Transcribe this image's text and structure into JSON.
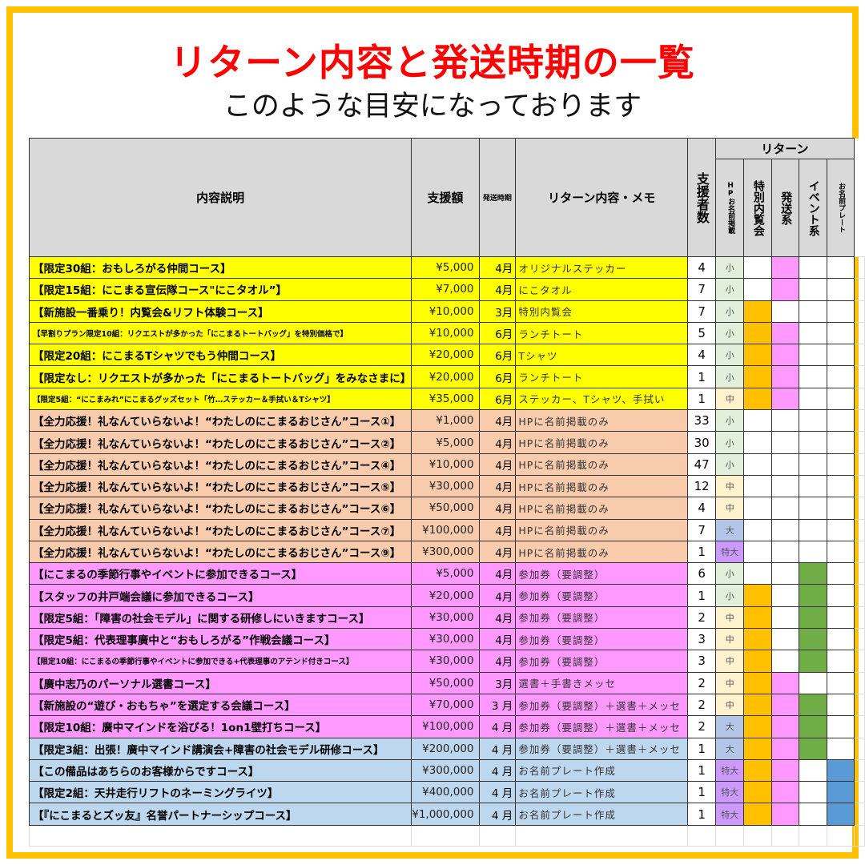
{
  "title": "リターン内容と発送時期の一覧",
  "subtitle": "このような目安になっております",
  "headers": {
    "desc": "内容説明",
    "amount": "支援額",
    "month": "発送時期",
    "memo": "リターン内容・メモ",
    "count": "支援者数",
    "returns": "リターン",
    "hp": "HPお名前掲載",
    "special": "特別内覧会",
    "ship": "発送系",
    "event": "イベント系",
    "plate": "お名前プレート"
  },
  "colors": {
    "yellow": "#ffff00",
    "peach": "#f8cbad",
    "pink": "#ff99ff",
    "blue": "#bdd7ee",
    "special": "#ffc000",
    "ship": "#ff99ff",
    "event": "#70ad47",
    "plate": "#5b9bd5",
    "小": "#e2efda",
    "中": "#fff2cc",
    "大": "#b4c6e7",
    "特大": "#cc99ff",
    "border": "#ffc000",
    "title": "#ff0000"
  },
  "rows": [
    {
      "group": "yellow",
      "desc": "【限定30組：おもしろがる仲間コース】",
      "amount": "¥5,000",
      "month": "4月",
      "memo": "オリジナルステッカー",
      "count": "4",
      "hp": "小",
      "special": false,
      "ship": true,
      "event": false,
      "plate": false
    },
    {
      "group": "yellow",
      "desc": "【限定15組：にこまる宣伝隊コース\"にこタオル”】",
      "amount": "¥7,000",
      "month": "4月",
      "memo": "にこタオル",
      "count": "7",
      "hp": "小",
      "special": false,
      "ship": true,
      "event": false,
      "plate": false
    },
    {
      "group": "yellow",
      "desc": "【新施設一番乗り！内覧会&リフト体験コース】",
      "amount": "¥10,000",
      "month": "3月",
      "memo": "特別内覧会",
      "count": "7",
      "hp": "小",
      "special": true,
      "ship": false,
      "event": false,
      "plate": false
    },
    {
      "group": "yellow",
      "small": true,
      "desc": "【早割りプラン限定10組：リクエストが多かった「にこまるトートバッグ」を特別価格で】",
      "amount": "¥10,000",
      "month": "6月",
      "memo": "ランチトート",
      "count": "5",
      "hp": "小",
      "special": true,
      "ship": true,
      "event": false,
      "plate": false
    },
    {
      "group": "yellow",
      "desc": "【限定20組：にこまるTシャツでもう仲間コース】",
      "amount": "¥20,000",
      "month": "6月",
      "memo": "Tシャツ",
      "count": "4",
      "hp": "小",
      "special": true,
      "ship": true,
      "event": false,
      "plate": false
    },
    {
      "group": "yellow",
      "desc": "【限定なし：リクエストが多かった「にこまるトートバッグ」をみなさまに】",
      "amount": "¥20,000",
      "month": "6月",
      "memo": "ランチトート",
      "count": "1",
      "hp": "小",
      "special": true,
      "ship": true,
      "event": false,
      "plate": false
    },
    {
      "group": "yellow",
      "small": true,
      "desc": "【限定5組：“にこまみれ”にこまるグッズセット「竹…ステッカー＆手拭い＆Tシャツ】",
      "amount": "¥35,000",
      "month": "6月",
      "memo": "ステッカー、Tシャツ、手拭い",
      "count": "1",
      "hp": "中",
      "special": true,
      "ship": true,
      "event": false,
      "plate": false
    },
    {
      "group": "peach",
      "desc": "【全力応援！礼なんていらないよ！“わたしのにこまるおじさん”コース①】",
      "amount": "¥1,000",
      "month": "4月",
      "memo": "HPに名前掲載のみ",
      "count": "33",
      "hp": "小",
      "special": false,
      "ship": false,
      "event": false,
      "plate": false
    },
    {
      "group": "peach",
      "desc": "【全力応援！礼なんていらないよ！“わたしのにこまるおじさん”コース②】",
      "amount": "¥5,000",
      "month": "4月",
      "memo": "HPに名前掲載のみ",
      "count": "30",
      "hp": "小",
      "special": false,
      "ship": false,
      "event": false,
      "plate": false
    },
    {
      "group": "peach",
      "desc": "【全力応援！礼なんていらないよ！“わたしのにこまるおじさん”コース④】",
      "amount": "¥10,000",
      "month": "4月",
      "memo": "HPに名前掲載のみ",
      "count": "47",
      "hp": "小",
      "special": false,
      "ship": false,
      "event": false,
      "plate": false
    },
    {
      "group": "peach",
      "desc": "【全力応援！礼なんていらないよ！“わたしのにこまるおじさん”コース⑤】",
      "amount": "¥30,000",
      "month": "4月",
      "memo": "HPに名前掲載のみ",
      "count": "12",
      "hp": "中",
      "special": false,
      "ship": false,
      "event": false,
      "plate": false
    },
    {
      "group": "peach",
      "desc": "【全力応援！礼なんていらないよ！“わたしのにこまるおじさん”コース⑥】",
      "amount": "¥50,000",
      "month": "4月",
      "memo": "HPに名前掲載のみ",
      "count": "4",
      "hp": "中",
      "special": false,
      "ship": false,
      "event": false,
      "plate": false
    },
    {
      "group": "peach",
      "desc": "【全力応援！礼なんていらないよ！“わたしのにこまるおじさん”コース⑦】",
      "amount": "¥100,000",
      "month": "4月",
      "memo": "HPに名前掲載のみ",
      "count": "7",
      "hp": "大",
      "special": false,
      "ship": false,
      "event": false,
      "plate": false
    },
    {
      "group": "peach",
      "desc": "【全力応援！礼なんていらないよ！“わたしのにこまるおじさん”コース⑨】",
      "amount": "¥300,000",
      "month": "4月",
      "memo": "HPに名前掲載のみ",
      "count": "1",
      "hp": "特大",
      "special": false,
      "ship": false,
      "event": false,
      "plate": false
    },
    {
      "group": "pink",
      "desc": "【にこまるの季節行事やイベントに参加できるコース】",
      "amount": "¥5,000",
      "month": "4月",
      "memo": "参加券（要調整）",
      "count": "6",
      "hp": "小",
      "special": false,
      "ship": false,
      "event": true,
      "plate": false
    },
    {
      "group": "pink",
      "desc": "【スタッフの井戸端会議に参加できるコース】",
      "amount": "¥20,000",
      "month": "4月",
      "memo": "参加券（要調整）",
      "count": "1",
      "hp": "小",
      "special": true,
      "ship": false,
      "event": true,
      "plate": false
    },
    {
      "group": "pink",
      "desc": "【限定5組：「障害の社会モデル」に関する研修しにいきますコース】",
      "amount": "¥30,000",
      "month": "4月",
      "memo": "参加券（要調整）",
      "count": "2",
      "hp": "中",
      "special": true,
      "ship": false,
      "event": true,
      "plate": false
    },
    {
      "group": "pink",
      "desc": "【限定5組：代表理事廣中と“おもしろがる”作戦会議コース】",
      "amount": "¥30,000",
      "month": "4月",
      "memo": "参加券（要調整）",
      "count": "3",
      "hp": "中",
      "special": true,
      "ship": false,
      "event": true,
      "plate": false
    },
    {
      "group": "pink",
      "small": true,
      "desc": "【限定10組：にこまるの季節行事やイベントに参加できる+代表理事のアテンド付きコース】",
      "amount": "¥30,000",
      "month": "4月",
      "memo": "参加券（要調整）",
      "count": "3",
      "hp": "中",
      "special": true,
      "ship": false,
      "event": true,
      "plate": false
    },
    {
      "group": "pink",
      "desc": "【廣中志乃のパーソナル選書コース】",
      "amount": "¥50,000",
      "month": "3月",
      "memo": "選書＋手書きメッセ",
      "count": "2",
      "hp": "中",
      "special": true,
      "ship": true,
      "event": false,
      "plate": false
    },
    {
      "group": "pink",
      "desc": "【新施設の“遊び・おもちゃ”を選定する会議コース】",
      "amount": "¥70,000",
      "month": "3 月",
      "memo": "参加券（要調整）＋選書＋メッセ",
      "count": "2",
      "hp": "中",
      "special": true,
      "ship": true,
      "event": true,
      "plate": false
    },
    {
      "group": "pink",
      "desc": "【限定10組：廣中マインドを浴びる！1on1壁打ちコース】",
      "amount": "¥100,000",
      "month": "4 月",
      "memo": "参加券（要調整）＋選書＋メッセ",
      "count": "2",
      "hp": "大",
      "special": true,
      "ship": true,
      "event": true,
      "plate": false
    },
    {
      "group": "blue",
      "desc": "【限定3組：出張！廣中マインド講演会+障害の社会モデル研修コース】",
      "amount": "¥200,000",
      "month": "4 月",
      "memo": "参加券（要調整）＋選書＋メッセ",
      "count": "1",
      "hp": "大",
      "special": true,
      "ship": true,
      "event": true,
      "plate": false
    },
    {
      "group": "blue",
      "desc": "【この備品はあちらのお客様からですコース】",
      "amount": "¥300,000",
      "month": "4 月",
      "memo": "お名前プレート作成",
      "count": "1",
      "hp": "特大",
      "special": true,
      "ship": true,
      "event": false,
      "plate": true
    },
    {
      "group": "blue",
      "desc": "【限定2組：天井走行リフトのネーミングライツ】",
      "amount": "¥400,000",
      "month": "4 月",
      "memo": "お名前プレート作成",
      "count": "1",
      "hp": "特大",
      "special": true,
      "ship": true,
      "event": false,
      "plate": true
    },
    {
      "group": "blue",
      "desc": "【『にこまるとズッ友』名誉パートナーシップコース】",
      "amount": "¥1,000,000",
      "month": "4 月",
      "memo": "お名前プレート作成",
      "count": "1",
      "hp": "特大",
      "special": true,
      "ship": true,
      "event": false,
      "plate": true
    }
  ]
}
